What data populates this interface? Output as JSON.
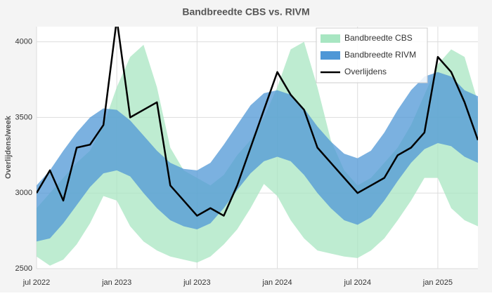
{
  "chart_data": {
    "type": "line",
    "title": "Bandbreedte CBS vs. RIVM",
    "y_label": "Overlijdens/week",
    "x": [
      "2022-07",
      "2022-08",
      "2022-09",
      "2022-10",
      "2022-11",
      "2022-12",
      "2023-01",
      "2023-02",
      "2023-03",
      "2023-04",
      "2023-05",
      "2023-06",
      "2023-07",
      "2023-08",
      "2023-09",
      "2023-10",
      "2023-11",
      "2023-12",
      "2024-01",
      "2024-02",
      "2024-03",
      "2024-04",
      "2024-05",
      "2024-06",
      "2024-07",
      "2024-08",
      "2024-09",
      "2024-10",
      "2024-11",
      "2024-12",
      "2025-01",
      "2025-02",
      "2025-03",
      "2025-04"
    ],
    "xlim": [
      "2022-07",
      "2025-04"
    ],
    "xticks": [
      {
        "value": "2022-07",
        "label": "jul 2022"
      },
      {
        "value": "2023-01",
        "label": "jan 2023"
      },
      {
        "value": "2023-07",
        "label": "jul 2023"
      },
      {
        "value": "2024-01",
        "label": "jan 2024"
      },
      {
        "value": "2024-07",
        "label": "jul 2024"
      },
      {
        "value": "2025-01",
        "label": "jan 2025"
      }
    ],
    "ylim": [
      2500,
      4100
    ],
    "yticks": [
      2500,
      3000,
      3500,
      4000
    ],
    "grid": true,
    "legend": "upper right",
    "series": [
      {
        "name": "Bandbreedte CBS",
        "type": "band",
        "color": "#a8e6c2",
        "lower": [
          2580,
          2520,
          2560,
          2660,
          2800,
          2980,
          2950,
          2780,
          2680,
          2620,
          2580,
          2560,
          2540,
          2580,
          2660,
          2760,
          2900,
          3060,
          2980,
          2820,
          2700,
          2620,
          2600,
          2580,
          2570,
          2620,
          2700,
          2820,
          2950,
          3100,
          3100,
          2900,
          2820,
          2780
        ],
        "upper": [
          2900,
          3000,
          3100,
          3200,
          3280,
          3450,
          3700,
          3900,
          3980,
          3700,
          3300,
          3150,
          3100,
          3050,
          3120,
          3250,
          3350,
          3500,
          3700,
          3950,
          4000,
          3700,
          3350,
          3150,
          3050,
          3100,
          3200,
          3300,
          3450,
          3650,
          3850,
          3950,
          3900,
          3600
        ]
      },
      {
        "name": "Bandbreedte RIVM",
        "type": "band",
        "color": "#4f97d6",
        "lower": [
          2680,
          2700,
          2800,
          2920,
          3040,
          3130,
          3150,
          3110,
          3000,
          2900,
          2820,
          2780,
          2760,
          2800,
          2900,
          3020,
          3130,
          3210,
          3240,
          3210,
          3120,
          3000,
          2900,
          2820,
          2790,
          2840,
          2950,
          3080,
          3200,
          3290,
          3330,
          3310,
          3240,
          3200
        ],
        "upper": [
          3050,
          3150,
          3280,
          3400,
          3500,
          3560,
          3550,
          3480,
          3380,
          3280,
          3200,
          3160,
          3150,
          3200,
          3320,
          3450,
          3580,
          3660,
          3680,
          3650,
          3560,
          3440,
          3340,
          3260,
          3230,
          3280,
          3400,
          3550,
          3680,
          3770,
          3800,
          3770,
          3680,
          3640
        ]
      },
      {
        "name": "Overlijdens",
        "type": "line",
        "color": "#000000",
        "values": [
          3000,
          3150,
          2950,
          3300,
          3320,
          3450,
          4150,
          3500,
          3550,
          3600,
          3050,
          2950,
          2850,
          2900,
          2850,
          3050,
          3300,
          3550,
          3800,
          3650,
          3550,
          3300,
          3200,
          3100,
          3000,
          3050,
          3100,
          3250,
          3300,
          3400,
          3900,
          3800,
          3600,
          3350
        ]
      }
    ]
  }
}
